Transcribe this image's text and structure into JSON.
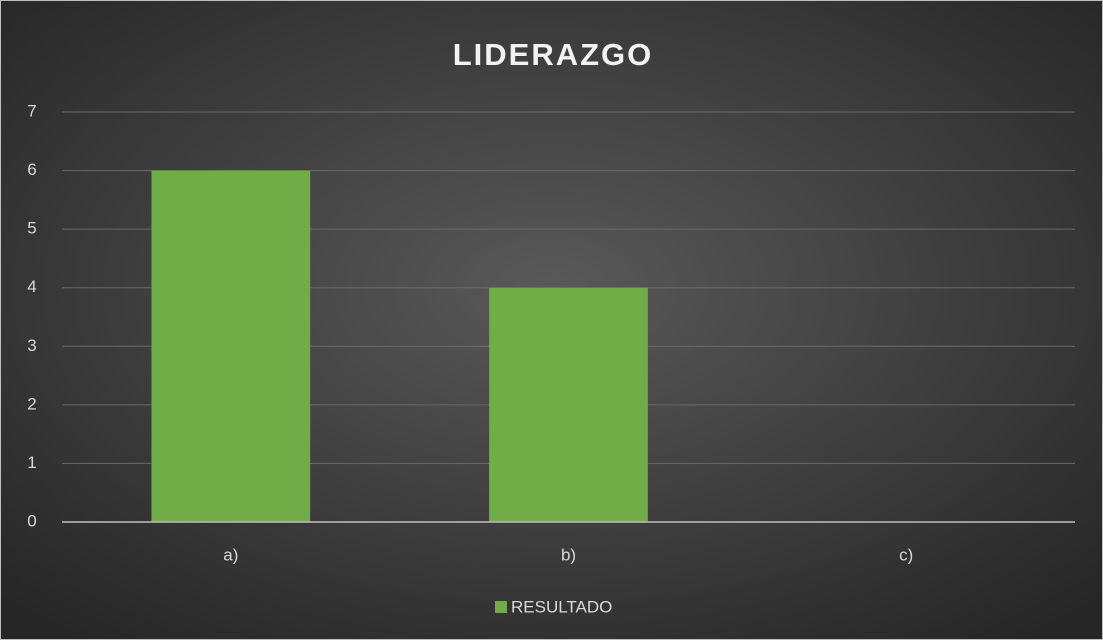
{
  "chart_data": {
    "type": "bar",
    "title": "LIDERAZGO",
    "categories": [
      "a)",
      "b)",
      "c)"
    ],
    "series": [
      {
        "name": "RESULTADO",
        "color": "#70ad47",
        "values": [
          6,
          4,
          0
        ]
      }
    ],
    "ylim": [
      0,
      7
    ],
    "yticks": [
      0,
      1,
      2,
      3,
      4,
      5,
      6,
      7
    ],
    "grid": true,
    "legend": "bottom"
  }
}
